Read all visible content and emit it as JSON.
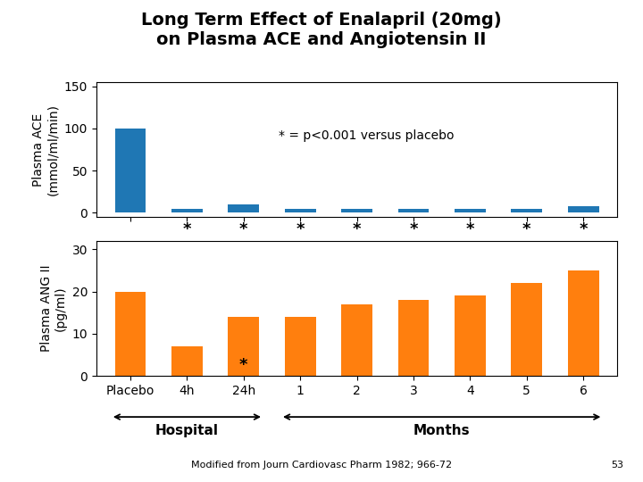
{
  "chart_data": [
    {
      "type": "bar",
      "title": "Long Term Effect of Enalapril (20mg)\non Plasma ACE and Angiotensin II",
      "categories": [
        "Placebo",
        "4h",
        "24h",
        "1",
        "2",
        "3",
        "4",
        "5",
        "6"
      ],
      "values": [
        100,
        5,
        10,
        5,
        5,
        5,
        5,
        5,
        8
      ],
      "ylabel": "Plasma ACE\n(mmol/ml/min)",
      "ylim": [
        -5,
        155
      ],
      "yticks": [
        0,
        50,
        100,
        150
      ],
      "tick_labels": "y",
      "significance": [
        null,
        "*",
        "*",
        "*",
        "*",
        "*",
        "*",
        "*",
        "*"
      ],
      "annotations": [
        "* = p<0.001 versus placebo"
      ]
    },
    {
      "type": "bar",
      "categories": [
        "Placebo",
        "4h",
        "24h",
        "1",
        "2",
        "3",
        "4",
        "5",
        "6"
      ],
      "values": [
        20,
        7,
        14,
        14,
        17,
        18,
        19,
        22,
        25
      ],
      "ylabel": "Plasma ANG II\n(pg/ml)",
      "ylim": [
        0,
        32
      ],
      "yticks": [
        0,
        10,
        20,
        30
      ],
      "significance": [
        null,
        null,
        "*",
        null,
        null,
        null,
        null,
        null,
        null
      ],
      "spans": [
        {
          "label": "Hospital",
          "from": "Placebo",
          "to": "24h"
        },
        {
          "label": "Months",
          "from": "1",
          "to": "6"
        }
      ],
      "source": "Modified from Journ Cardiovasc Pharm 1982; 966-72",
      "page": "53"
    }
  ]
}
